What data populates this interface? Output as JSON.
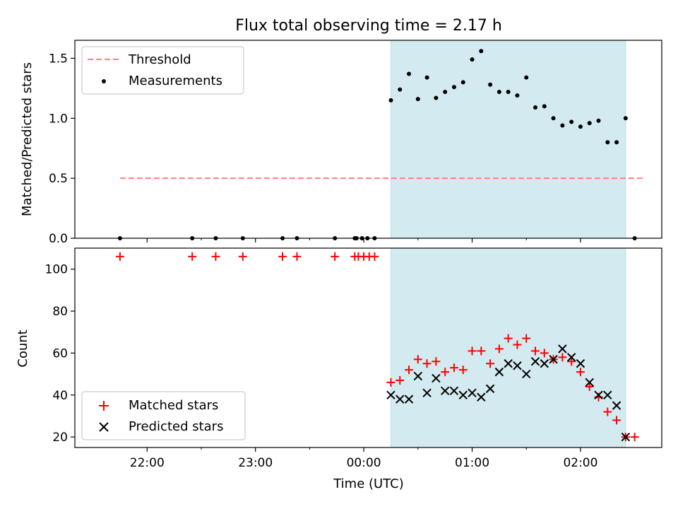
{
  "chart_data": {
    "type": "scatter",
    "title": "Flux total observing time = 2.17 h",
    "xlabel": "Time (UTC)",
    "x_ticks": [
      "22:00",
      "23:00",
      "00:00",
      "01:00",
      "02:00"
    ],
    "x_tick_values": [
      "22:00",
      "23:00",
      "00:00",
      "01:00",
      "02:00"
    ],
    "x_minor_ticks": [
      "22:30",
      "23:30",
      "00:30",
      "01:30"
    ],
    "xlim": [
      "21:20",
      "02:45"
    ],
    "shaded_range": [
      "00:15",
      "02:25"
    ],
    "shade_color": "#d3eaf0",
    "top": {
      "ylabel": "Matched/Predicted stars",
      "ylim": [
        0,
        1.65
      ],
      "yticks": [
        "0.0",
        "0.5",
        "1.0",
        "1.5"
      ],
      "ytick_values": [
        0,
        0.5,
        1.0,
        1.5
      ],
      "threshold": {
        "name": "Threshold",
        "y": 0.5,
        "x_range": [
          "21:45",
          "02:35"
        ],
        "color": "#ff7f7f"
      },
      "legend": "top-left",
      "measurements": {
        "name": "Measurements",
        "color": "#000000",
        "points": [
          [
            "21:45",
            0
          ],
          [
            "22:25",
            0
          ],
          [
            "22:38",
            0
          ],
          [
            "22:53",
            0
          ],
          [
            "23:15",
            0
          ],
          [
            "23:23",
            0
          ],
          [
            "23:44",
            0
          ],
          [
            "23:55",
            0
          ],
          [
            "23:56",
            0
          ],
          [
            "23:59",
            0
          ],
          [
            "00:02",
            0
          ],
          [
            "00:06",
            0
          ],
          [
            "00:15",
            1.15
          ],
          [
            "00:20",
            1.24
          ],
          [
            "00:25",
            1.37
          ],
          [
            "00:30",
            1.16
          ],
          [
            "00:35",
            1.34
          ],
          [
            "00:40",
            1.17
          ],
          [
            "00:45",
            1.22
          ],
          [
            "00:50",
            1.26
          ],
          [
            "00:55",
            1.3
          ],
          [
            "01:00",
            1.49
          ],
          [
            "01:05",
            1.56
          ],
          [
            "01:10",
            1.28
          ],
          [
            "01:15",
            1.22
          ],
          [
            "01:20",
            1.22
          ],
          [
            "01:25",
            1.19
          ],
          [
            "01:30",
            1.34
          ],
          [
            "01:35",
            1.09
          ],
          [
            "01:40",
            1.1
          ],
          [
            "01:45",
            1.0
          ],
          [
            "01:50",
            0.94
          ],
          [
            "01:55",
            0.97
          ],
          [
            "02:00",
            0.93
          ],
          [
            "02:05",
            0.96
          ],
          [
            "02:10",
            0.98
          ],
          [
            "02:15",
            0.8
          ],
          [
            "02:20",
            0.8
          ],
          [
            "02:25",
            1.0
          ],
          [
            "02:30",
            0
          ]
        ]
      }
    },
    "bottom": {
      "ylabel": "Count",
      "ylim": [
        15,
        110
      ],
      "yticks": [
        "20",
        "40",
        "60",
        "80",
        "100"
      ],
      "ytick_values": [
        20,
        40,
        60,
        80,
        100
      ],
      "legend": "bottom-left",
      "matched": {
        "name": "Matched stars",
        "color": "#ff0000",
        "points": [
          [
            "21:45",
            106
          ],
          [
            "22:25",
            106
          ],
          [
            "22:38",
            106
          ],
          [
            "22:53",
            106
          ],
          [
            "23:15",
            106
          ],
          [
            "23:23",
            106
          ],
          [
            "23:44",
            106
          ],
          [
            "23:55",
            106
          ],
          [
            "23:57",
            106
          ],
          [
            "24:00",
            106
          ],
          [
            "24:03",
            106
          ],
          [
            "24:06",
            106
          ],
          [
            "00:15",
            46
          ],
          [
            "00:20",
            47
          ],
          [
            "00:25",
            52
          ],
          [
            "00:30",
            57
          ],
          [
            "00:35",
            55
          ],
          [
            "00:40",
            56
          ],
          [
            "00:45",
            51
          ],
          [
            "00:50",
            53
          ],
          [
            "00:55",
            52
          ],
          [
            "01:00",
            61
          ],
          [
            "01:05",
            61
          ],
          [
            "01:10",
            55
          ],
          [
            "01:15",
            62
          ],
          [
            "01:20",
            67
          ],
          [
            "01:25",
            64
          ],
          [
            "01:30",
            67
          ],
          [
            "01:35",
            61
          ],
          [
            "01:40",
            60
          ],
          [
            "01:45",
            57
          ],
          [
            "01:50",
            58
          ],
          [
            "01:55",
            56
          ],
          [
            "02:00",
            51
          ],
          [
            "02:05",
            44
          ],
          [
            "02:10",
            39
          ],
          [
            "02:15",
            32
          ],
          [
            "02:20",
            28
          ],
          [
            "02:25",
            20
          ],
          [
            "02:30",
            20
          ]
        ]
      },
      "predicted": {
        "name": "Predicted stars",
        "color": "#000000",
        "points": [
          [
            "00:15",
            40
          ],
          [
            "00:20",
            38
          ],
          [
            "00:25",
            38
          ],
          [
            "00:30",
            49
          ],
          [
            "00:35",
            41
          ],
          [
            "00:40",
            48
          ],
          [
            "00:45",
            42
          ],
          [
            "00:50",
            42
          ],
          [
            "00:55",
            40
          ],
          [
            "01:00",
            41
          ],
          [
            "01:05",
            39
          ],
          [
            "01:10",
            43
          ],
          [
            "01:15",
            51
          ],
          [
            "01:20",
            55
          ],
          [
            "01:25",
            54
          ],
          [
            "01:30",
            50
          ],
          [
            "01:35",
            56
          ],
          [
            "01:40",
            55
          ],
          [
            "01:45",
            57
          ],
          [
            "01:50",
            62
          ],
          [
            "01:55",
            58
          ],
          [
            "02:00",
            55
          ],
          [
            "02:05",
            46
          ],
          [
            "02:10",
            40
          ],
          [
            "02:15",
            40
          ],
          [
            "02:20",
            35
          ],
          [
            "02:25",
            20
          ]
        ]
      }
    }
  }
}
